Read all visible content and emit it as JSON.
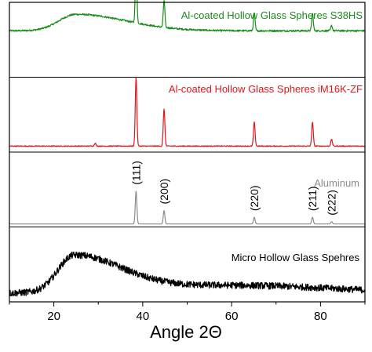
{
  "chart_data": {
    "type": "line",
    "xlabel": "Angle 2Θ",
    "ylabel": "",
    "xlim": [
      10,
      90
    ],
    "x_ticks": [
      20,
      40,
      60,
      80
    ],
    "grid": false,
    "panels": [
      {
        "name": "Al-coated Hollow Glass Spheres S38HS",
        "color": "#1a8c1a",
        "baseline": 0.62,
        "noise": 0.012,
        "hump": {
          "center": 25,
          "width": 7,
          "height": 0.22
        },
        "peaks": [
          {
            "x": 38.5,
            "h": 0.8
          },
          {
            "x": 44.8,
            "h": 0.36
          },
          {
            "x": 65.1,
            "h": 0.24
          },
          {
            "x": 78.2,
            "h": 0.23
          },
          {
            "x": 82.5,
            "h": 0.07
          }
        ]
      },
      {
        "name": "Al-coated Hollow Glass Spheres iM16K-ZF",
        "color": "#e0161b",
        "baseline": 0.08,
        "noise": 0.006,
        "hump": {
          "center": 25,
          "width": 7,
          "height": 0.0
        },
        "peaks": [
          {
            "x": 29.3,
            "h": 0.04
          },
          {
            "x": 38.5,
            "h": 0.92
          },
          {
            "x": 44.8,
            "h": 0.5
          },
          {
            "x": 65.1,
            "h": 0.32
          },
          {
            "x": 78.2,
            "h": 0.32
          },
          {
            "x": 82.5,
            "h": 0.09
          }
        ]
      },
      {
        "name": "Aluminum",
        "color": "#8c8c8c",
        "baseline": 0.04,
        "noise": 0.0,
        "hump": {
          "center": 25,
          "width": 7,
          "height": 0.0
        },
        "peaks": [
          {
            "x": 38.5,
            "h": 0.44,
            "label": "(111)"
          },
          {
            "x": 44.8,
            "h": 0.18,
            "label": "(200)"
          },
          {
            "x": 65.1,
            "h": 0.09,
            "label": "(220)"
          },
          {
            "x": 78.2,
            "h": 0.09,
            "label": "(211)"
          },
          {
            "x": 82.5,
            "h": 0.03,
            "label": "(222)"
          }
        ]
      },
      {
        "name": "Micro Hollow Glass Spehres",
        "color": "#000000",
        "baseline": 0.1,
        "noise": 0.045,
        "hump": {
          "center": 24.5,
          "width": 6.5,
          "height": 0.48
        },
        "shoulder": {
          "center": 60,
          "width": 25,
          "height": 0.12
        },
        "peaks": []
      }
    ]
  }
}
